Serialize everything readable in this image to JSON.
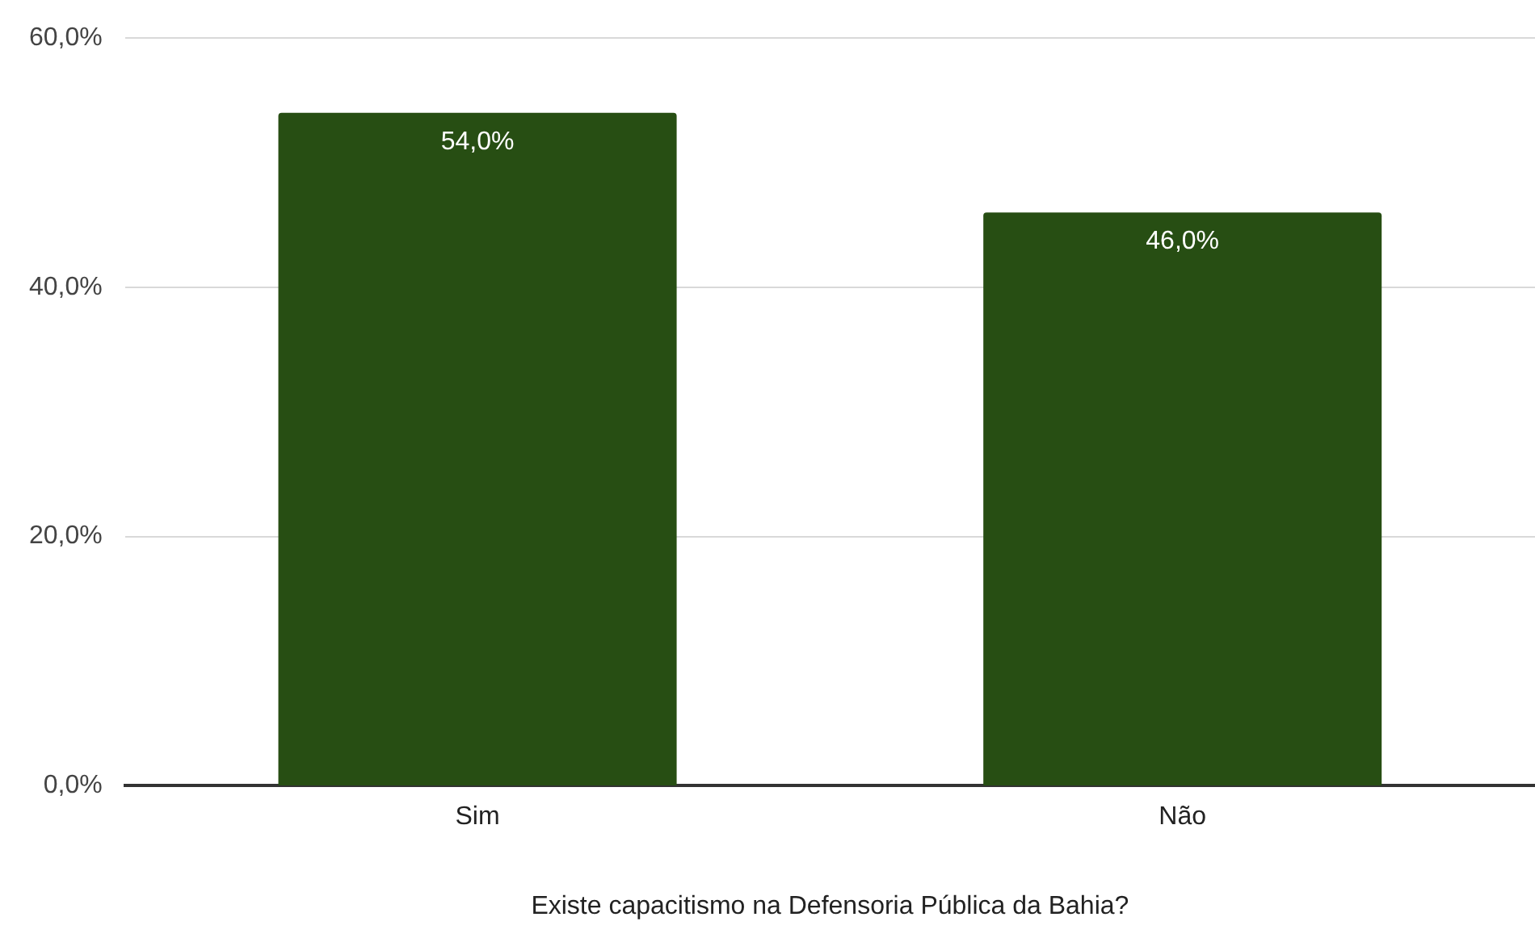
{
  "chart_data": {
    "type": "bar",
    "xlabel": "Existe capacitismo na Defensoria Pública da Bahia?",
    "categories": [
      "Sim",
      "Não"
    ],
    "values": [
      54.0,
      46.0
    ],
    "value_labels": [
      "54,0%",
      "46,0%"
    ],
    "color": "#274e13",
    "ylim": [
      0,
      60
    ],
    "yticks": [
      {
        "value": 0,
        "label": "0,0%"
      },
      {
        "value": 20,
        "label": "20,0%"
      },
      {
        "value": 40,
        "label": "40,0%"
      },
      {
        "value": 60,
        "label": "60,0%"
      }
    ],
    "grid": "y",
    "legend": false
  }
}
